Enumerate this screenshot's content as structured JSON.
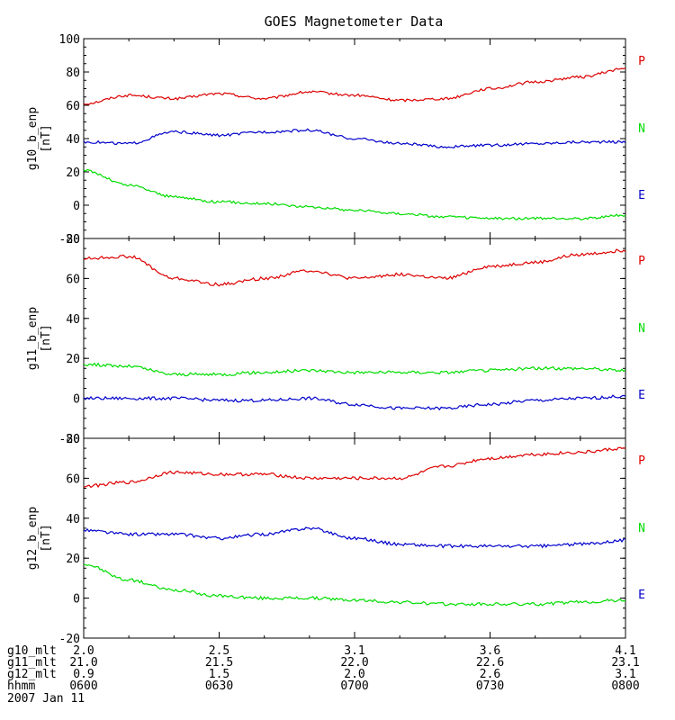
{
  "title": "GOES Magnetometer Data",
  "date_label": "2007 Jan 11",
  "colors": {
    "P": "#dd0000",
    "N": "#00dd00",
    "E": "#0000cc",
    "axis": "#000000"
  },
  "chart_data": [
    {
      "type": "line",
      "ylabel": "g10_b_enp",
      "units": "[nT]",
      "ylim": [
        -20,
        100
      ],
      "yticks": [
        -20,
        0,
        20,
        40,
        60,
        80,
        100
      ],
      "xlim": [
        0,
        120
      ],
      "x": [
        0,
        10,
        20,
        30,
        40,
        50,
        60,
        70,
        80,
        90,
        100,
        110,
        120
      ],
      "series": [
        {
          "name": "P",
          "color": "#dd0000",
          "values": [
            61,
            66,
            64,
            67,
            64,
            68,
            66,
            63,
            64,
            70,
            74,
            77,
            82
          ]
        },
        {
          "name": "N",
          "color": "#00dd00",
          "values": [
            21,
            12,
            5,
            2,
            1,
            -1,
            -3,
            -5,
            -7,
            -8,
            -8,
            -8,
            -6
          ]
        },
        {
          "name": "E",
          "color": "#0000cc",
          "values": [
            38,
            37,
            44,
            42,
            44,
            45,
            40,
            37,
            35,
            36,
            37,
            38,
            38
          ]
        }
      ]
    },
    {
      "type": "line",
      "ylabel": "g11_b_enp",
      "units": "[nT]",
      "ylim": [
        -20,
        80
      ],
      "yticks": [
        -20,
        0,
        20,
        40,
        60,
        80
      ],
      "xlim": [
        0,
        120
      ],
      "x": [
        0,
        10,
        20,
        30,
        40,
        50,
        60,
        70,
        80,
        90,
        100,
        110,
        120
      ],
      "series": [
        {
          "name": "P",
          "color": "#dd0000",
          "values": [
            70,
            71,
            60,
            57,
            60,
            64,
            60,
            62,
            60,
            66,
            68,
            72,
            74
          ]
        },
        {
          "name": "N",
          "color": "#00dd00",
          "values": [
            17,
            16,
            12,
            12,
            13,
            14,
            13,
            13,
            13,
            14,
            15,
            15,
            14
          ]
        },
        {
          "name": "E",
          "color": "#0000cc",
          "values": [
            0,
            0,
            0,
            -1,
            -1,
            0,
            -3,
            -5,
            -5,
            -3,
            -1,
            0,
            1
          ]
        }
      ]
    },
    {
      "type": "line",
      "ylabel": "g12_b_enp",
      "units": "[nT]",
      "ylim": [
        -20,
        80
      ],
      "yticks": [
        -20,
        0,
        20,
        40,
        60,
        80
      ],
      "xlim": [
        0,
        120
      ],
      "x": [
        0,
        10,
        20,
        30,
        40,
        50,
        60,
        70,
        80,
        90,
        100,
        110,
        120
      ],
      "series": [
        {
          "name": "P",
          "color": "#dd0000",
          "values": [
            56,
            58,
            63,
            62,
            62,
            60,
            60,
            60,
            66,
            70,
            72,
            73,
            75
          ]
        },
        {
          "name": "N",
          "color": "#00dd00",
          "values": [
            17,
            9,
            4,
            1,
            0,
            0,
            -1,
            -2,
            -3,
            -3,
            -3,
            -2,
            -1
          ]
        },
        {
          "name": "E",
          "color": "#0000cc",
          "values": [
            34,
            32,
            32,
            30,
            32,
            35,
            30,
            27,
            26,
            26,
            26,
            27,
            29
          ]
        }
      ]
    }
  ],
  "x_rows": [
    {
      "label": "g10_mlt",
      "values": [
        "2.0",
        "2.5",
        "3.1",
        "3.6",
        "4.1"
      ]
    },
    {
      "label": "g11_mlt",
      "values": [
        "21.0",
        "21.5",
        "22.0",
        "22.6",
        "23.1"
      ]
    },
    {
      "label": "g12_mlt",
      "values": [
        "0.9",
        "1.5",
        "2.0",
        "2.6",
        "3.1"
      ]
    },
    {
      "label": "hhmm",
      "values": [
        "0600",
        "0630",
        "0700",
        "0730",
        "0800"
      ]
    }
  ],
  "x_tick_minutes": [
    0,
    30,
    60,
    90,
    120
  ]
}
